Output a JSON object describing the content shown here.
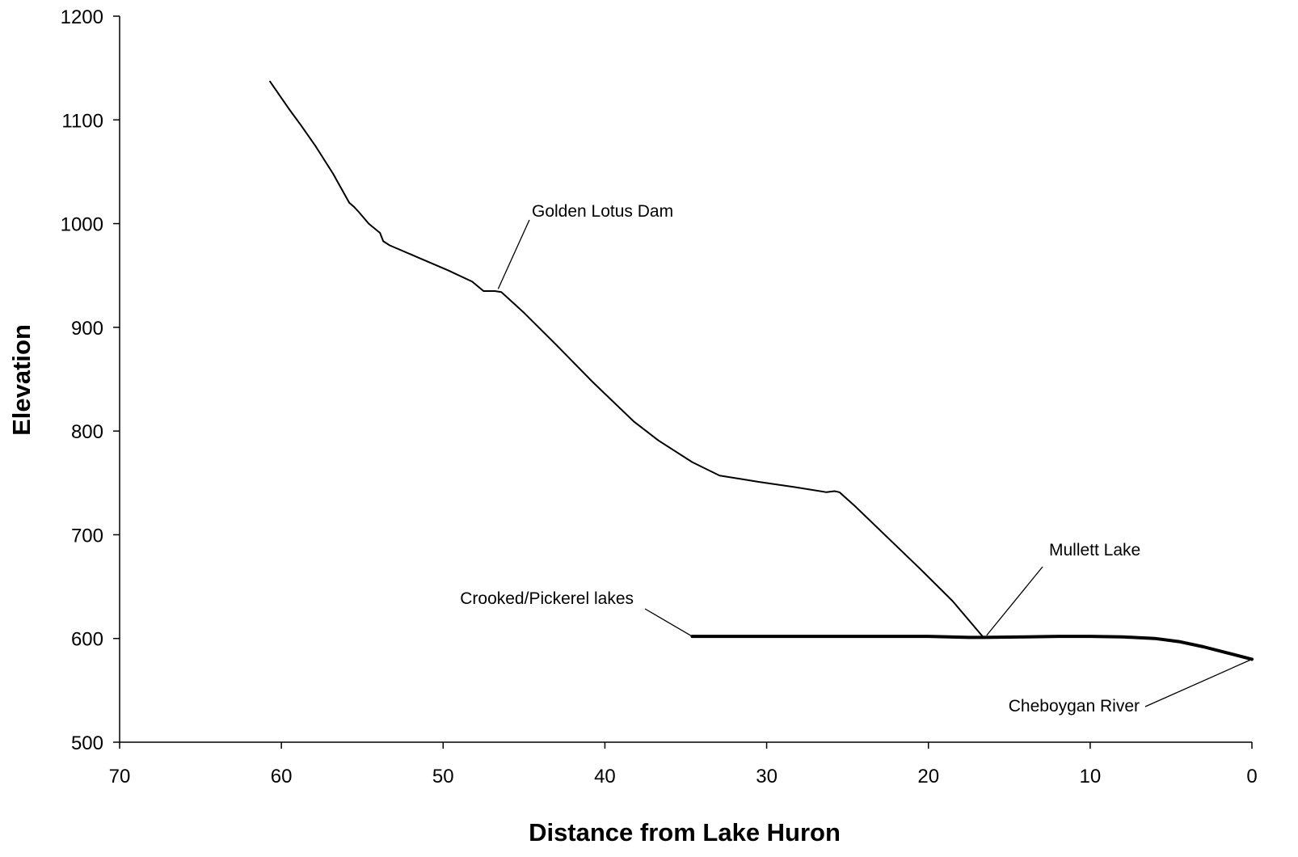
{
  "chart_data": {
    "type": "line",
    "title": "",
    "xlabel": "Distance from Lake Huron",
    "ylabel": "Elevation",
    "xlim": [
      70,
      0
    ],
    "ylim": [
      500,
      1200
    ],
    "x_ticks": [
      70,
      60,
      50,
      40,
      30,
      20,
      10,
      0
    ],
    "y_ticks": [
      500,
      600,
      700,
      800,
      900,
      1000,
      1100,
      1200
    ],
    "grid": false,
    "legend": "none",
    "series": [
      {
        "color": "#000000",
        "weight": "thin",
        "x": [
          60.7,
          59.5,
          58.8,
          57.9,
          56.8,
          55.8,
          55.5,
          55.2,
          54.6,
          53.9,
          53.7,
          53.3,
          51.5,
          49.7,
          48.2,
          47.5,
          46.8,
          46.4,
          45.0,
          43.0,
          40.8,
          38.2,
          36.7,
          34.6,
          32.9,
          31.3,
          30.5,
          28.3,
          26.3,
          25.8,
          25.5,
          24.5,
          22.5,
          20.5,
          18.5,
          16.6
        ],
        "y": [
          1137,
          1110,
          1095,
          1075,
          1048,
          1020,
          1016,
          1011,
          1000,
          991,
          983,
          979,
          967,
          955,
          944,
          935,
          935,
          934,
          914,
          883,
          848,
          809,
          791,
          770,
          757,
          753,
          751,
          746,
          741,
          742,
          741,
          727,
          697,
          667,
          636,
          601
        ]
      },
      {
        "color": "#000000",
        "weight": "thick",
        "x": [
          34.6,
          30,
          25,
          20,
          17.5,
          16.6,
          14,
          12,
          10,
          8,
          6,
          4.5,
          3,
          1.5,
          0
        ],
        "y": [
          602,
          602,
          602,
          602,
          601,
          601,
          601.5,
          602,
          602,
          601.5,
          600,
          597,
          592,
          586,
          580
        ]
      }
    ],
    "annotations": [
      {
        "text": "Golden Lotus Dam",
        "point": [
          46.6,
          937
        ]
      },
      {
        "text": "Mullett Lake",
        "point": [
          16.4,
          603
        ]
      },
      {
        "text": "Crooked/Pickerel lakes",
        "point": [
          34.6,
          602
        ]
      },
      {
        "text": "Cheboygan River",
        "point": [
          0.0,
          580
        ]
      }
    ]
  }
}
